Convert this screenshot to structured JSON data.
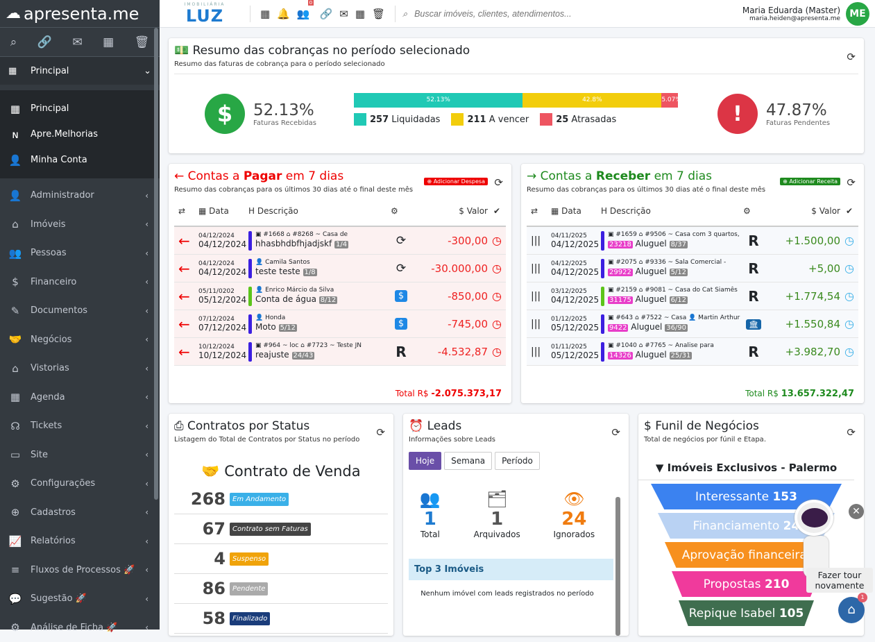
{
  "app": {
    "logo": "apresenta.me",
    "brand": "LUZ",
    "brand_sub": "IMOBILIÁRIA",
    "notif_count": "0"
  },
  "search": {
    "placeholder": "Buscar imóveis, clientes, atendimentos..."
  },
  "user": {
    "name": "Maria Eduarda (Master)",
    "email": "maria.heiden@apresenta.me",
    "initials": "ME"
  },
  "sidebar": {
    "section": "Principal",
    "sub": [
      {
        "label": "Principal",
        "icon": "grid-icon"
      },
      {
        "label": "Apre.Melhorias",
        "icon": "new-icon"
      },
      {
        "label": "Minha Conta",
        "icon": "user-icon"
      }
    ],
    "items": [
      {
        "label": "Administrador",
        "icon": "user-tie-icon"
      },
      {
        "label": "Imóveis",
        "icon": "home-icon"
      },
      {
        "label": "Pessoas",
        "icon": "people-icon"
      },
      {
        "label": "Financeiro",
        "icon": "dollar-icon"
      },
      {
        "label": "Documentos",
        "icon": "document-icon"
      },
      {
        "label": "Negócios",
        "icon": "handshake-icon"
      },
      {
        "label": "Vistorias",
        "icon": "house-search-icon"
      },
      {
        "label": "Agenda",
        "icon": "calendar-icon"
      },
      {
        "label": "Tickets",
        "icon": "headset-icon"
      },
      {
        "label": "Site",
        "icon": "site-icon"
      },
      {
        "label": "Configurações",
        "icon": "gears-icon"
      },
      {
        "label": "Cadastros",
        "icon": "plus-circle-icon"
      },
      {
        "label": "Relatórios",
        "icon": "chart-icon"
      },
      {
        "label": "Fluxos de Processos 🚀",
        "icon": "flow-icon"
      },
      {
        "label": "Sugestão 🚀",
        "icon": "comments-icon"
      },
      {
        "label": "Análise de Ficha 🚀",
        "icon": "gear-icon"
      }
    ]
  },
  "resumo": {
    "title": "Resumo das cobranças no período selecionado",
    "subtitle": "Resumo das faturas de cobrança para o período selecionado",
    "received_pct": "52.13%",
    "received_label": "Faturas Recebidas",
    "pending_pct": "47.87%",
    "pending_label": "Faturas Pendentes",
    "bars": [
      {
        "label": "52.13%",
        "pct": 52.13,
        "color": "#20c9b5"
      },
      {
        "label": "42.8%",
        "pct": 42.8,
        "color": "#f2cd0c"
      },
      {
        "label": "5.07%",
        "pct": 5.07,
        "color": "#ee5561"
      }
    ],
    "legend": [
      {
        "count": "257",
        "label": "Liquidadas",
        "color": "#20c9b5"
      },
      {
        "count": "211",
        "label": "A vencer",
        "color": "#f2cd0c"
      },
      {
        "count": "25",
        "label": "Atrasadas",
        "color": "#ee5561"
      }
    ]
  },
  "pagar": {
    "title_a": "Contas a ",
    "title_b": "Pagar",
    "title_c": " em 7 dias",
    "subtitle": "Resumo das cobranças para os últimos 30 dias até o final deste mês",
    "add_label": "Adicionar Despesa",
    "cols": {
      "date": "Data",
      "desc": "Descrição",
      "value": "Valor"
    },
    "rows": [
      {
        "d1": "04/12/2024",
        "d2": "04/12/2024",
        "meta": "▣ #1668  ⌂ #8268 ~ Casa de",
        "text": "hhasbhdbfhjadjskf",
        "parc": "1/4",
        "value": "-300,00",
        "bar": "#3c1fe0",
        "icon": "recurring-dollar-icon"
      },
      {
        "d1": "04/12/2024",
        "d2": "04/12/2024",
        "meta": "👤 Camila Santos",
        "text": "teste teste",
        "parc": "1/8",
        "value": "-30.000,00",
        "bar": "#3c1fe0",
        "icon": "recurring-dollar-icon"
      },
      {
        "d1": "05/11/0202",
        "d2": "05/12/2024",
        "meta": "👤 Enrico Márcio da Silva",
        "text": "Conta de água",
        "parc": "8/12",
        "value": "-850,00",
        "bar": "#5cc41a",
        "icon": "money-bag-icon"
      },
      {
        "d1": "07/12/2024",
        "d2": "07/12/2024",
        "meta": "👤 Honda",
        "text": "Moto",
        "parc": "5/12",
        "value": "-745,00",
        "bar": "#3c1fe0",
        "icon": "money-bag-icon"
      },
      {
        "d1": "10/12/2024",
        "d2": "10/12/2024",
        "meta": "▣ #964 ~ loc  ⌂ #7723 ~ Teste JN",
        "text": "reajuste",
        "parc": "24/43",
        "value": "-4.532,87",
        "bar": "#3c1fe0",
        "icon": "r-logo-icon"
      }
    ],
    "total_label": "Total R$",
    "total": "-2.075.373,17"
  },
  "receber": {
    "title_a": "Contas a ",
    "title_b": "Receber",
    "title_c": " em 7 dias",
    "subtitle": "Resumo das cobranças para os últimos 30 dias até o final deste mês",
    "add_label": "Adicionar Receita",
    "cols": {
      "date": "Data",
      "desc": "Descrição",
      "value": "Valor"
    },
    "rows": [
      {
        "d1": "04/11/2025",
        "d2": "04/12/2025",
        "meta": "▣ #1659  ⌂ #9506 ~ Casa com 3 quartos,",
        "code": "23218",
        "text": "Aluguel",
        "parc": "8/37",
        "value": "+1.500,00",
        "bar": "#3c1fe0",
        "icon": "r-logo-icon"
      },
      {
        "d1": "04/12/2025",
        "d2": "04/12/2025",
        "meta": "▣ #2075  ⌂ #9336 ~ Sala Comercial -",
        "code": "29922",
        "text": "Aluguel",
        "parc": "5/12",
        "value": "+5,00",
        "bar": "#3c1fe0",
        "icon": "r-logo-icon"
      },
      {
        "d1": "03/12/2025",
        "d2": "04/12/2025",
        "meta": "▣ #2159  ⌂ #9081 ~ Casa do Cat Siamês",
        "code": "31175",
        "text": "Aluguel",
        "parc": "6/12",
        "value": "+1.774,54",
        "bar": "#5cc41a",
        "icon": "r-logo-icon"
      },
      {
        "d1": "01/12/2025",
        "d2": "05/12/2025",
        "meta": "▣ #643  ⌂ #7522 ~ Casa 👤 Martin Arthur",
        "code": "9422",
        "text": "Aluguel",
        "parc": "36/90",
        "value": "+1.550,84",
        "bar": "#3c1fe0",
        "icon": "bank-icon"
      },
      {
        "d1": "01/11/2025",
        "d2": "05/12/2025",
        "meta": "▣ #1040  ⌂ #7765 ~ Analise para",
        "code": "14326",
        "text": "Aluguel",
        "parc": "25/31",
        "value": "+3.982,70",
        "bar": "#3c1fe0",
        "icon": "r-logo-icon"
      }
    ],
    "total_label": "Total R$",
    "total": "13.657.322,47"
  },
  "contratos": {
    "title": "Contratos por Status",
    "subtitle": "Listagem do Total de Contratos por Status no período",
    "group": "Contrato de Venda",
    "rows": [
      {
        "n": "268",
        "label": "Em Andamento",
        "color": "#3ab0e8"
      },
      {
        "n": "67",
        "label": "Contrato sem Faturas",
        "color": "#444"
      },
      {
        "n": "4",
        "label": "Suspenso",
        "color": "#f0a30a"
      },
      {
        "n": "86",
        "label": "Pendente",
        "color": "#aaa"
      },
      {
        "n": "58",
        "label": "Finalizado",
        "color": "#1a3c7a"
      }
    ]
  },
  "leads": {
    "title": "Leads",
    "subtitle": "Informações sobre Leads",
    "tabs": [
      "Hoje",
      "Semana",
      "Período"
    ],
    "stats": [
      {
        "n": "1",
        "label": "Total",
        "color": "#1e7bd0"
      },
      {
        "n": "1",
        "label": "Arquivados",
        "color": "#555"
      },
      {
        "n": "24",
        "label": "Ignorados",
        "color": "#f07c10"
      }
    ],
    "top_title": "Top 3 Imóveis",
    "empty": "Nenhum imóvel com leads registrados no período"
  },
  "funil": {
    "title": "Funil de Negócios",
    "subtitle": "Total de negócios por fúnil e Etapa.",
    "name": "Imóveis Exclusivos - Palermo",
    "stages": [
      {
        "label": "Interessante",
        "n": "153",
        "color": "#3b82f0"
      },
      {
        "label": "Financiamento",
        "n": "24",
        "color": "#b9d2f3"
      },
      {
        "label": "Aprovação financeira",
        "n": "",
        "color": "#f7901e"
      },
      {
        "label": "Propostas",
        "n": "210",
        "color": "#f03a9c"
      },
      {
        "label": "Repique Isabel",
        "n": "105",
        "color": "#3f6e4f"
      }
    ]
  },
  "tour": {
    "label": "Fazer tour novamente",
    "count": "1"
  }
}
